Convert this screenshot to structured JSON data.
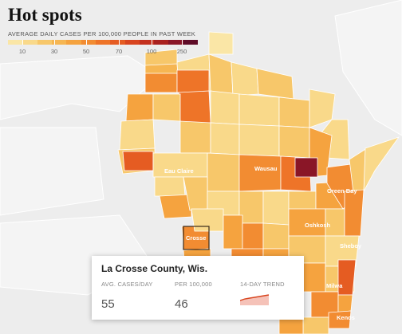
{
  "header": {
    "title": "Hot spots"
  },
  "legend": {
    "caption": "AVERAGE DAILY CASES PER 100,000 PEOPLE IN PAST WEEK",
    "ticks": [
      "10",
      "30",
      "50",
      "70",
      "100",
      "250"
    ],
    "colors": [
      "#fae6a6",
      "#f9d98a",
      "#f7c76a",
      "#f6b652",
      "#f5a33f",
      "#f28c32",
      "#ee7428",
      "#e55c22",
      "#d8451f",
      "#c4311e",
      "#a9211f",
      "#8a1627",
      "#5e0b27"
    ]
  },
  "cities": {
    "eau_claire": "Eau Claire",
    "wausau": "Wausau",
    "green_bay": "Green Bay",
    "la_crosse": "Crosse",
    "oshkosh": "Oshkosh",
    "sheboygan": "Sheboy",
    "milwaukee": "Milwa",
    "kenosha": "Kenos"
  },
  "tooltip": {
    "title": "La Crosse County, Wis.",
    "col1_header": "AVG. CASES/DAY",
    "col1_value": "55",
    "col2_header": "PER 100,000",
    "col2_value": "46",
    "col3_header": "14-DAY TREND",
    "trend_color": "#d8451f",
    "trend_fill": "#f5c2b8"
  }
}
